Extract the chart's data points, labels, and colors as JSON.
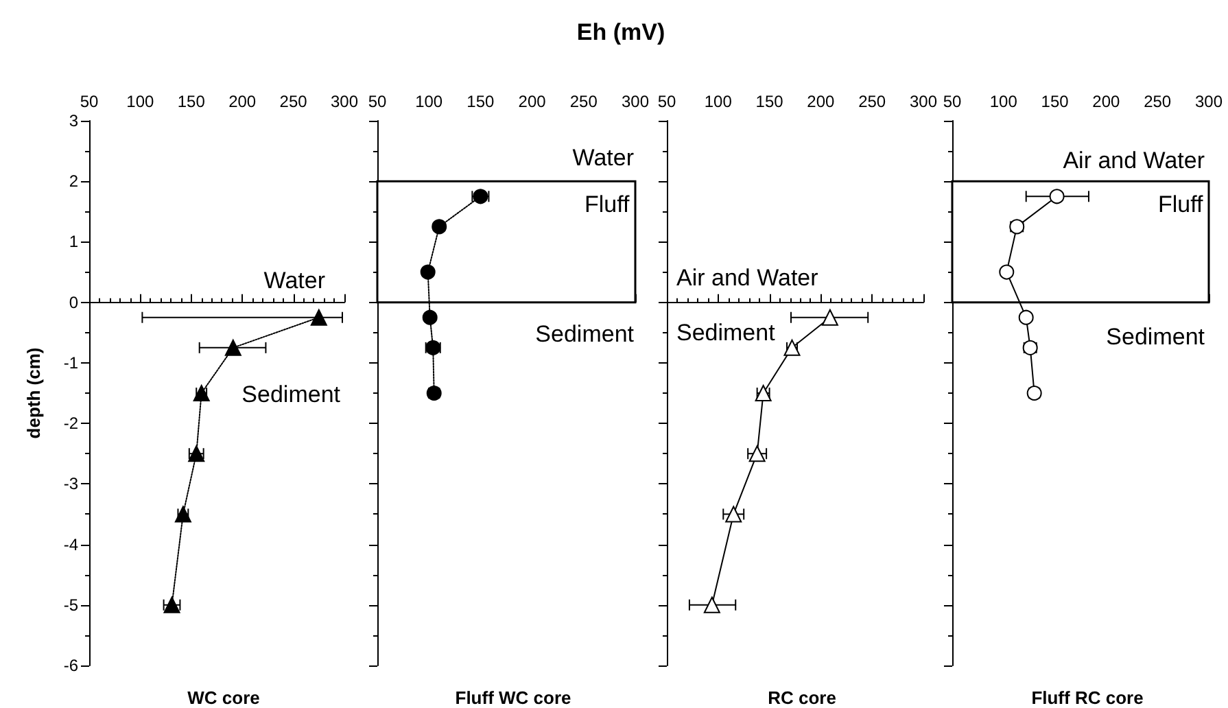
{
  "chart_data": [
    {
      "type": "line",
      "xlabel": "WC core",
      "ylabel": "depth (cm)",
      "marker": "triangle",
      "line_style": "dotted",
      "xlim": [
        50,
        300
      ],
      "xticks": [
        50,
        100,
        150,
        200,
        250,
        300
      ],
      "ylim": [
        -6,
        3
      ],
      "yticks": [
        -6,
        -5,
        -4,
        -3,
        -2,
        -1,
        0,
        1,
        2,
        3
      ],
      "series": [
        {
          "color": "#000000",
          "x": [
            275,
            191,
            160,
            155,
            142,
            131
          ],
          "values": [
            -0.25,
            -0.75,
            -1.5,
            -2.5,
            -3.5,
            -5
          ],
          "xerrors": [
            [
              102,
              298
            ],
            [
              158,
              223
            ],
            5,
            7,
            5,
            8
          ]
        }
      ],
      "ref_lines": [
        {
          "axis": "y",
          "value": 0
        }
      ],
      "annotations": [
        "Water",
        "Sediment"
      ]
    },
    {
      "type": "line",
      "title": "Eh (mV)",
      "xlabel": "Fluff WC core",
      "marker": "circle",
      "line_style": "dotted",
      "xlim": [
        50,
        300
      ],
      "xticks": [
        50,
        100,
        150,
        200,
        250,
        300
      ],
      "ylim": [
        -6,
        3
      ],
      "yticks": [
        -6,
        -5,
        -4,
        -3,
        -2,
        -1,
        0,
        1,
        2,
        3
      ],
      "tick_labels": "x",
      "series": [
        {
          "color": "#000000",
          "x": [
            150,
            110,
            99,
            101,
            104,
            105
          ],
          "values": [
            1.75,
            1.25,
            0.5,
            -0.25,
            -0.75,
            -1.5
          ],
          "xerrors": [
            8,
            null,
            null,
            null,
            7,
            5
          ]
        }
      ],
      "bands": [
        {
          "axis": "y",
          "from": 0,
          "to": 2,
          "label": "Fluff"
        }
      ],
      "annotations": [
        "Water",
        "Sediment"
      ]
    },
    {
      "type": "line",
      "xlabel": "RC core",
      "marker": "triangle",
      "line_style": "solid",
      "xlim": [
        50,
        300
      ],
      "xticks": [
        50,
        100,
        150,
        200,
        250,
        300
      ],
      "ylim": [
        -6,
        3
      ],
      "yticks": [
        -6,
        -5,
        -4,
        -3,
        -2,
        -1,
        0,
        1,
        2,
        3
      ],
      "tick_labels": "x",
      "series": [
        {
          "color": "#ffffff",
          "x": [
            209,
            172,
            144,
            138,
            115,
            94
          ],
          "values": [
            -0.25,
            -0.75,
            -1.5,
            -2.5,
            -3.5,
            -5
          ],
          "xerrors": [
            [
              171,
              246
            ],
            5,
            6,
            9,
            10,
            [
              72,
              117
            ]
          ]
        }
      ],
      "ref_lines": [
        {
          "axis": "y",
          "value": 0
        }
      ],
      "annotations": [
        "Air and Water",
        "Sediment"
      ]
    },
    {
      "type": "line",
      "xlabel": "Fluff RC core",
      "marker": "circle",
      "line_style": "solid",
      "xlim": [
        50,
        300
      ],
      "xticks": [
        50,
        100,
        150,
        200,
        250,
        300
      ],
      "ylim": [
        -6,
        3
      ],
      "yticks": [
        -6,
        -5,
        -4,
        -3,
        -2,
        -1,
        0,
        1,
        2,
        3
      ],
      "tick_labels": "x",
      "series": [
        {
          "color": "#ffffff",
          "x": [
            152,
            113,
            103,
            122,
            126,
            130
          ],
          "values": [
            1.75,
            1.25,
            0.5,
            -0.25,
            -0.75,
            -1.5
          ],
          "xerrors": [
            [
              122,
              183
            ],
            6,
            null,
            null,
            6,
            5
          ]
        }
      ],
      "bands": [
        {
          "axis": "y",
          "from": 0,
          "to": 2,
          "label": "Fluff"
        }
      ],
      "annotations": [
        "Air and Water",
        "Sediment"
      ]
    }
  ]
}
